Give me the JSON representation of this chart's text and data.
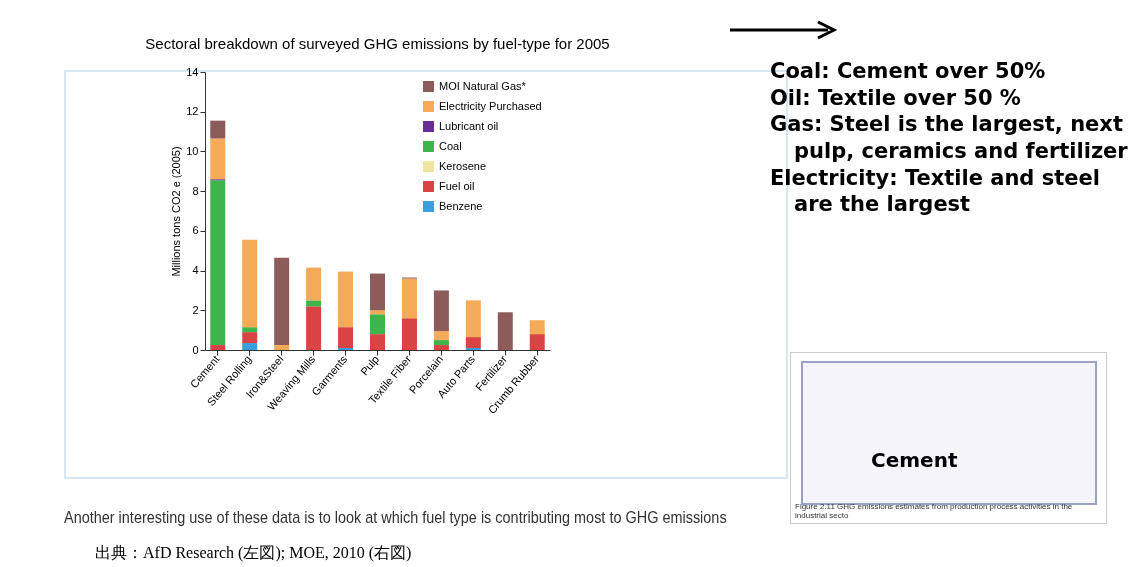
{
  "chart_data": {
    "type": "bar",
    "stacked": true,
    "title": "Sectoral breakdown of surveyed GHG emissions by fuel-type for 2005",
    "ylabel": "Millions tons CO2 e (2005)",
    "categories": [
      "Cement",
      "Steel Rolling",
      "Iron&Steel",
      "Weaving Mills",
      "Garments",
      "Pulp",
      "Textile Fiber",
      "Porcelain",
      "Auto Parts",
      "Fertilizer",
      "Crumb Rubber"
    ],
    "series": [
      {
        "name": "Benzene",
        "color": "#3a9fdc",
        "values": [
          null,
          0.35,
          null,
          null,
          0.1,
          null,
          null,
          null,
          0.1,
          null,
          null
        ]
      },
      {
        "name": "Fuel oil",
        "color": "#d94343",
        "values": [
          0.25,
          0.55,
          null,
          2.2,
          1.05,
          0.8,
          1.6,
          0.25,
          0.55,
          null,
          0.8
        ]
      },
      {
        "name": "Kerosene",
        "color": "#efe4a2",
        "values": [
          null,
          null,
          null,
          null,
          null,
          null,
          null,
          null,
          null,
          null,
          null
        ]
      },
      {
        "name": "Coal",
        "color": "#3db54a",
        "values": [
          8.3,
          0.25,
          null,
          0.3,
          null,
          1.0,
          null,
          0.25,
          null,
          null,
          null
        ]
      },
      {
        "name": "Lubricant oil",
        "color": "#6a2c95",
        "values": [
          0.05,
          null,
          null,
          null,
          null,
          null,
          null,
          null,
          null,
          null,
          null
        ]
      },
      {
        "name": "Electricity Purchased",
        "color": "#f5aa58",
        "values": [
          2.05,
          4.4,
          0.25,
          1.65,
          2.8,
          0.2,
          2.0,
          0.45,
          1.85,
          null,
          0.7
        ]
      },
      {
        "name": "MOI Natural Gas*",
        "color": "#8e5b5b",
        "values": [
          0.9,
          null,
          4.4,
          null,
          null,
          1.85,
          0.05,
          2.05,
          null,
          1.9,
          null
        ]
      }
    ],
    "ylim": [
      0,
      14
    ],
    "yticks": [
      0,
      2,
      4,
      6,
      8,
      10,
      12,
      14
    ],
    "grid": false,
    "legend": "top right",
    "annotations": [
      "Coal: Cement  over 50%",
      "Oil: Textile  over 50 %",
      "Gas: Steel  is the largest, next pulp, ceramics and fertilizer",
      "Electricity: Textile and steel are the largest",
      "Cement",
      "Figure 2.11 GHG emissions estimates from production process activities in the industrial secto",
      "Another interesting use of these data is to look at which fuel type is contributing most to GHG emissions",
      "出典：AfD Research (左図); MOE, 2010 (右図)"
    ]
  }
}
